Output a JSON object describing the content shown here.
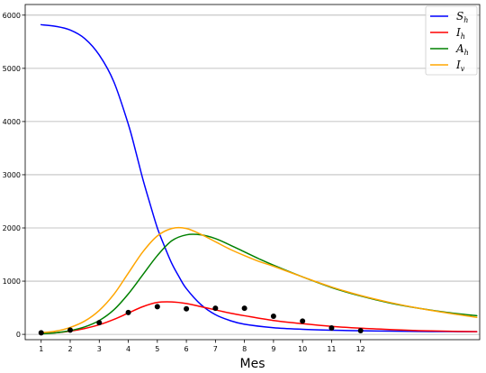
{
  "chart_data": {
    "type": "line",
    "xlabel": "Mes",
    "ylabel": "",
    "x_ticks": [
      1,
      2,
      3,
      4,
      5,
      6,
      7,
      8,
      9,
      10,
      11,
      12
    ],
    "y_ticks": [
      0,
      1000,
      2000,
      3000,
      4000,
      5000,
      6000
    ],
    "xlim": [
      0.45,
      16.1
    ],
    "ylim": [
      -100,
      6200
    ],
    "grid": "horizontal",
    "legend_position": "top-right",
    "series": [
      {
        "name": "Sh",
        "legend_base": "S",
        "legend_sub": "h",
        "color": "#0000ff",
        "x": [
          1,
          1.5,
          2,
          2.5,
          3,
          3.5,
          4,
          4.25,
          4.5,
          4.75,
          5,
          5.25,
          5.5,
          5.75,
          6,
          6.5,
          7,
          7.5,
          8,
          9,
          10,
          11,
          12,
          13,
          14,
          15,
          16
        ],
        "values": [
          5820,
          5790,
          5720,
          5560,
          5250,
          4750,
          3950,
          3450,
          2920,
          2450,
          2000,
          1650,
          1330,
          1080,
          860,
          560,
          370,
          260,
          190,
          125,
          95,
          78,
          68,
          60,
          55,
          52,
          50
        ]
      },
      {
        "name": "Ih",
        "legend_base": "I",
        "legend_sub": "h",
        "color": "#ff0000",
        "x": [
          1,
          1.5,
          2,
          2.5,
          3,
          3.5,
          4,
          4.5,
          5,
          5.5,
          6,
          6.5,
          7,
          7.5,
          8,
          9,
          10,
          11,
          12,
          13,
          14,
          15,
          16
        ],
        "values": [
          15,
          30,
          60,
          110,
          180,
          280,
          400,
          520,
          600,
          610,
          580,
          520,
          460,
          400,
          350,
          260,
          200,
          150,
          115,
          90,
          70,
          58,
          50
        ]
      },
      {
        "name": "Ah",
        "legend_base": "A",
        "legend_sub": "h",
        "color": "#008000",
        "x": [
          1,
          1.5,
          2,
          2.5,
          3,
          3.5,
          4,
          4.5,
          5,
          5.5,
          6,
          6.5,
          7,
          7.5,
          8,
          8.5,
          9,
          10,
          11,
          12,
          13,
          14,
          15,
          16
        ],
        "values": [
          10,
          30,
          70,
          140,
          260,
          460,
          760,
          1120,
          1480,
          1760,
          1870,
          1870,
          1800,
          1680,
          1550,
          1420,
          1300,
          1080,
          880,
          720,
          590,
          490,
          410,
          350
        ]
      },
      {
        "name": "Iv",
        "legend_base": "I",
        "legend_sub": "v",
        "color": "#ffa500",
        "x": [
          1,
          1.5,
          2,
          2.5,
          3,
          3.5,
          4,
          4.5,
          5,
          5.5,
          6,
          6.5,
          7,
          7.5,
          8,
          8.5,
          9,
          10,
          11,
          12,
          13,
          14,
          15,
          16
        ],
        "values": [
          30,
          60,
          130,
          250,
          450,
          750,
          1150,
          1550,
          1850,
          1990,
          1990,
          1880,
          1740,
          1600,
          1480,
          1370,
          1280,
          1080,
          890,
          730,
          600,
          490,
          400,
          320
        ]
      }
    ],
    "observed_points": {
      "color": "#000000",
      "x": [
        1,
        2,
        3,
        4,
        5,
        6,
        7,
        8,
        9,
        10,
        11,
        12
      ],
      "values": [
        30,
        80,
        220,
        410,
        520,
        480,
        490,
        490,
        340,
        250,
        120,
        70
      ]
    }
  }
}
